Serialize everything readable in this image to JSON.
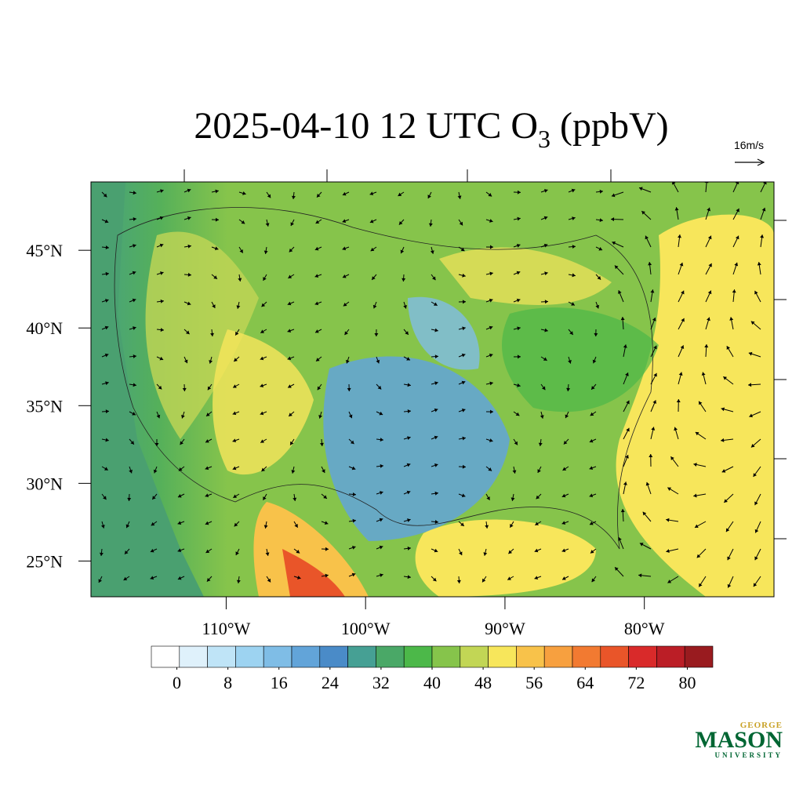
{
  "title": {
    "main": "2025-04-10 12 UTC O",
    "subscript": "3",
    "unit": "(ppbV)"
  },
  "vector_reference": "16m/s",
  "map": {
    "xlim": [
      -119.7,
      -70.7
    ],
    "ylim": [
      22.7,
      49.4
    ],
    "lat_ticks": [
      {
        "value": 45,
        "label": "45°N"
      },
      {
        "value": 40,
        "label": "40°N"
      },
      {
        "value": 35,
        "label": "35°N"
      },
      {
        "value": 30,
        "label": "30°N"
      },
      {
        "value": 25,
        "label": "25°N"
      }
    ],
    "lon_ticks": [
      {
        "value": -110,
        "label": "110°W"
      },
      {
        "value": -100,
        "label": "100°W"
      },
      {
        "value": -90,
        "label": "90°W"
      },
      {
        "value": -80,
        "label": "80°W"
      }
    ]
  },
  "colorbar": {
    "range": [
      -4,
      84
    ],
    "ticks": [
      0,
      8,
      16,
      24,
      32,
      40,
      48,
      56,
      64,
      72,
      80
    ],
    "colors": [
      "#ffffff",
      "#dff1fb",
      "#bfe4f7",
      "#9dd3f1",
      "#7fbde6",
      "#62a4d9",
      "#4a8bc8",
      "#46a094",
      "#4aa867",
      "#4cb849",
      "#86c44b",
      "#c2d655",
      "#f7e65b",
      "#f8c24a",
      "#f7a03f",
      "#f27a31",
      "#e95529",
      "#d92a2a",
      "#bb1e26",
      "#991b1f"
    ]
  },
  "logo": {
    "top": "GEORGE",
    "main": "MASON",
    "bottom": "UNIVERSITY"
  }
}
